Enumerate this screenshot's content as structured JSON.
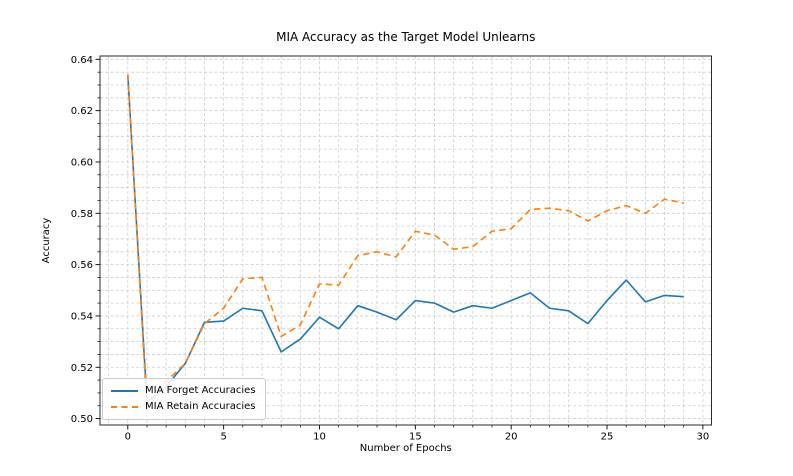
{
  "chart_data": {
    "type": "line",
    "title": "MIA Accuracy as the Target Model Unlearns",
    "xlabel": "Number of Epochs",
    "ylabel": "Accuracy",
    "x": [
      0,
      1,
      2,
      3,
      4,
      5,
      6,
      7,
      8,
      9,
      10,
      11,
      12,
      13,
      14,
      15,
      16,
      17,
      18,
      19,
      20,
      21,
      22,
      23,
      24,
      25,
      26,
      27,
      28,
      29
    ],
    "series": [
      {
        "name": "MIA Forget Accuracies",
        "color": "#1f77b4",
        "style": "solid",
        "values": [
          0.634,
          0.5065,
          0.5125,
          0.5215,
          0.5375,
          0.538,
          0.543,
          0.542,
          0.526,
          0.531,
          0.5395,
          0.535,
          0.544,
          0.5415,
          0.5385,
          0.546,
          0.545,
          0.5415,
          0.544,
          0.543,
          0.546,
          0.549,
          0.543,
          0.542,
          0.537,
          0.546,
          0.554,
          0.5455,
          0.548,
          0.5475
        ]
      },
      {
        "name": "MIA Retain Accuracies",
        "color": "#ff7f0e",
        "style": "dashed",
        "values": [
          0.634,
          0.504,
          0.5145,
          0.5215,
          0.537,
          0.543,
          0.5545,
          0.555,
          0.532,
          0.5365,
          0.5525,
          0.552,
          0.5635,
          0.565,
          0.563,
          0.573,
          0.5715,
          0.566,
          0.567,
          0.573,
          0.574,
          0.5815,
          0.582,
          0.581,
          0.577,
          0.581,
          0.583,
          0.58,
          0.5855,
          0.584
        ]
      }
    ],
    "xlim": [
      -1.45,
      30.45
    ],
    "ylim": [
      0.4975,
      0.6413
    ],
    "x_ticks": [
      0,
      5,
      10,
      15,
      20,
      25,
      30
    ],
    "y_ticks": [
      "0.50",
      "0.52",
      "0.54",
      "0.56",
      "0.58",
      "0.60",
      "0.62",
      "0.64"
    ],
    "x_minor_step": 1,
    "y_minor_step": 0.005,
    "grid": true,
    "grid_color": "#cccccc",
    "legend_position": "lower left"
  }
}
